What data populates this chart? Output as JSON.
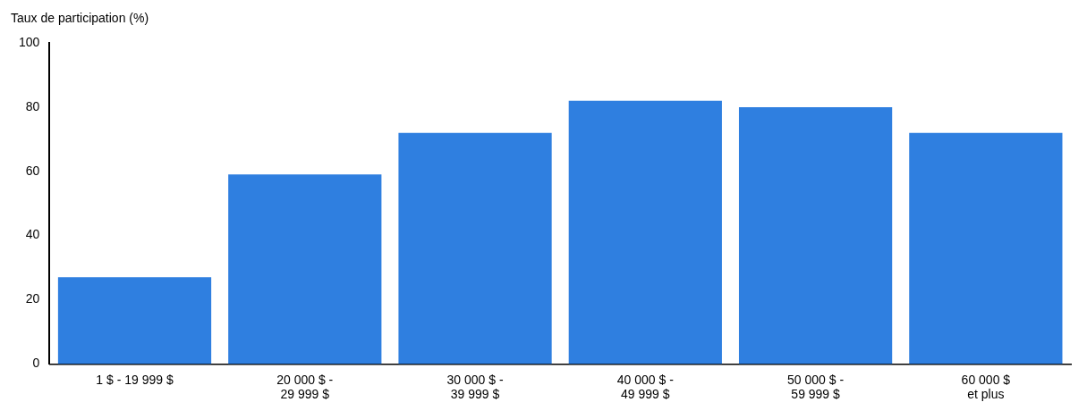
{
  "chart_data": {
    "type": "bar",
    "ylabel": "Taux de participation (%)",
    "categories": [
      "1 $ - 19 999 $",
      "20 000 $ -\n29 999 $",
      "30 000 $ -\n39 999 $",
      "40 000 $ -\n49 999 $",
      "50 000 $ -\n59 999 $",
      "60 000 $\net plus"
    ],
    "values": [
      27,
      59,
      72,
      82,
      80,
      72
    ],
    "color": "#2f7fe0",
    "ylim": [
      0,
      100
    ],
    "yticks": [
      0,
      20,
      40,
      60,
      80,
      100
    ],
    "grid": false,
    "legend": false
  }
}
